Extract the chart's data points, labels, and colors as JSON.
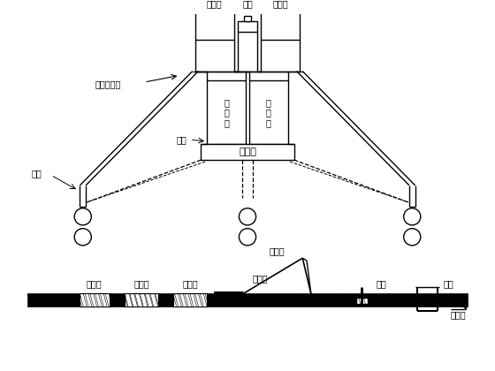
{
  "bg": "#ffffff",
  "lc": "#000000",
  "figsize": [
    5.6,
    4.2
  ],
  "dpi": 100,
  "labels": {
    "zhi_left": "制浆池",
    "shui_ta": "水塔",
    "zhi_right": "制浆池",
    "chu_jiang": "出浆循环槽",
    "chen_left": "沉\n淀\n池",
    "chen_right": "沉\n淀\n池",
    "ni_jiang_chi": "泥浆池",
    "zha_men": "闸门",
    "zuan_kong": "钻孔",
    "ni_jiang_beng": "泥浆泵",
    "zhi_bot": "制浆池",
    "chen_bot": "沉淀池",
    "ni_bot": "泥浆池",
    "jin_guan": "进浆管",
    "zuan_gan": "钻杆",
    "hu_tong": "护筒",
    "chu_cao": "出浆槽"
  }
}
